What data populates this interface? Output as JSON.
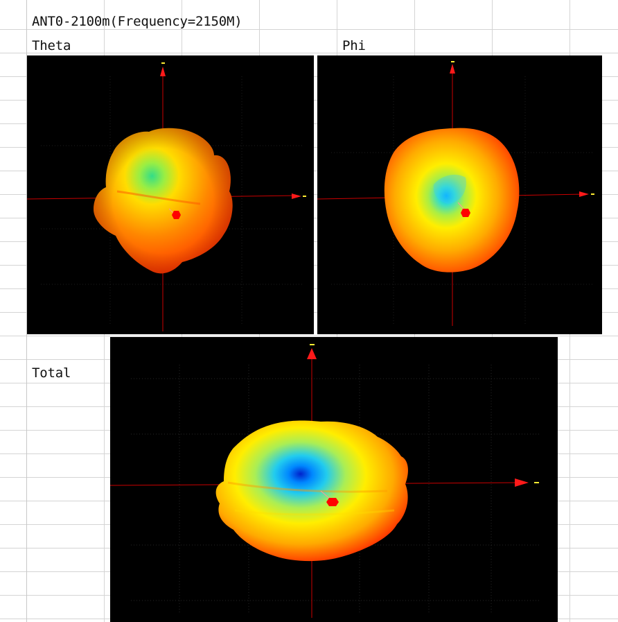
{
  "sheet": {
    "title": "ANT0-2100m(Frequency=2150M)",
    "labels": {
      "theta": "Theta",
      "phi": "Phi",
      "total": "Total"
    }
  },
  "colors": {
    "background": "#000000",
    "axis": "#cc0000",
    "arrow": "#ff1a1a",
    "axis_tick": "#ffee33",
    "pattern_high": "#ff3300",
    "pattern_mid": "#ffdd00",
    "pattern_low": "#00aaff"
  }
}
